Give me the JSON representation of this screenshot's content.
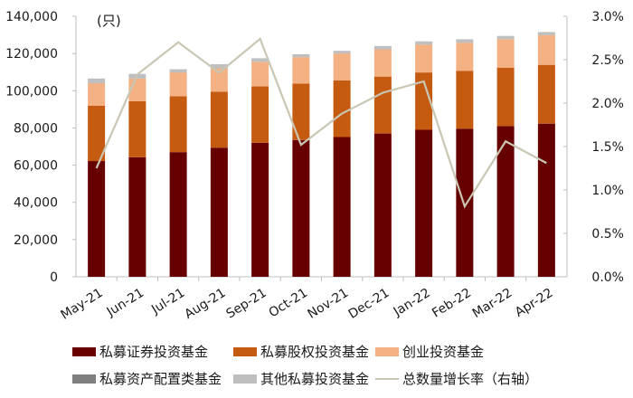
{
  "chart_data": {
    "type": "bar",
    "stacked": true,
    "title": "",
    "unit_label": "(只)",
    "categories": [
      "May-21",
      "Jun-21",
      "Jul-21",
      "Aug-21",
      "Sep-21",
      "Oct-21",
      "Nov-21",
      "Dec-21",
      "Jan-22",
      "Feb-22",
      "Mar-22",
      "Apr-22"
    ],
    "series": [
      {
        "name": "私募证券投资基金",
        "type": "bar",
        "axis": "left",
        "color": "#660000",
        "values": [
          62200,
          64200,
          67000,
          69400,
          72000,
          73500,
          75100,
          77000,
          79000,
          79600,
          81000,
          82300
        ]
      },
      {
        "name": "私募股权投资基金",
        "type": "bar",
        "axis": "left",
        "color": "#c55a11",
        "values": [
          29800,
          30100,
          30000,
          30100,
          30300,
          30300,
          30500,
          30600,
          30800,
          31100,
          31300,
          31600
        ]
      },
      {
        "name": "创业投资基金",
        "type": "bar",
        "axis": "left",
        "color": "#f4b183",
        "values": [
          12000,
          12200,
          12800,
          12500,
          13200,
          14200,
          14400,
          14600,
          15000,
          15100,
          15400,
          15900
        ]
      },
      {
        "name": "私募资产配置类基金",
        "type": "bar",
        "axis": "left",
        "color": "#7f7f7f",
        "values": [
          40,
          40,
          40,
          40,
          40,
          40,
          40,
          40,
          40,
          40,
          40,
          40
        ]
      },
      {
        "name": "其他私募投资基金",
        "type": "bar",
        "axis": "left",
        "color": "#bfbfbf",
        "values": [
          2500,
          2500,
          1700,
          2200,
          1900,
          1600,
          1400,
          1800,
          1700,
          1800,
          1700,
          1700
        ]
      },
      {
        "name": "总数量增长率（右轴）",
        "type": "line",
        "axis": "right",
        "color": "#c9c6b4",
        "values": [
          1.25,
          2.33,
          2.7,
          2.35,
          2.74,
          1.52,
          1.88,
          2.12,
          2.25,
          0.81,
          1.56,
          1.31
        ]
      }
    ],
    "y_left": {
      "min": 0,
      "max": 140000,
      "ticks": [
        0,
        20000,
        40000,
        60000,
        80000,
        100000,
        120000,
        140000
      ],
      "tick_labels": [
        "0",
        "20,000",
        "40,000",
        "60,000",
        "80,000",
        "100,000",
        "120,000",
        "140,000"
      ]
    },
    "y_right": {
      "min": 0,
      "max": 3.0,
      "ticks": [
        0,
        0.5,
        1.0,
        1.5,
        2.0,
        2.5,
        3.0
      ],
      "tick_labels": [
        "0.0%",
        "0.5%",
        "1.0%",
        "1.5%",
        "2.0%",
        "2.5%",
        "3.0%"
      ]
    },
    "xlabel": "",
    "ylabel": "",
    "grid": false,
    "legend_position": "bottom"
  },
  "legend": [
    {
      "label": "私募证券投资基金",
      "color": "#660000",
      "kind": "box"
    },
    {
      "label": "私募股权投资基金",
      "color": "#c55a11",
      "kind": "box"
    },
    {
      "label": "创业投资基金",
      "color": "#f4b183",
      "kind": "box"
    },
    {
      "label": "私募资产配置类基金",
      "color": "#7f7f7f",
      "kind": "box"
    },
    {
      "label": "其他私募投资基金",
      "color": "#bfbfbf",
      "kind": "box"
    },
    {
      "label": "总数量增长率（右轴）",
      "color": "#c9c6b4",
      "kind": "line"
    }
  ]
}
